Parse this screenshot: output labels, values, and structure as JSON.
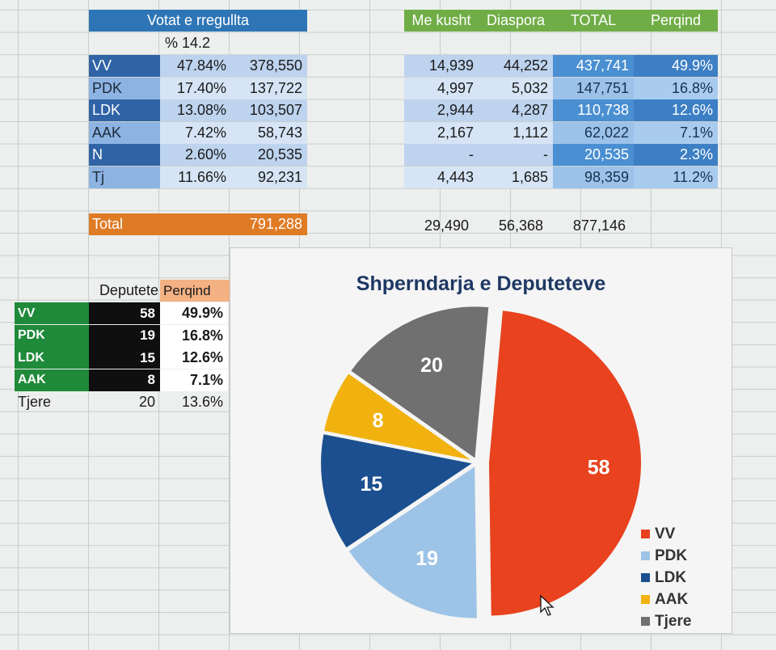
{
  "votes_table": {
    "header": "Votat e rregullta",
    "turnout": "% 14.2",
    "rows": [
      {
        "party": "VV",
        "pct": "47.84%",
        "votes": "378,550"
      },
      {
        "party": "PDK",
        "pct": "17.40%",
        "votes": "137,722"
      },
      {
        "party": "LDK",
        "pct": "13.08%",
        "votes": "103,507"
      },
      {
        "party": "AAK",
        "pct": "7.42%",
        "votes": "58,743"
      },
      {
        "party": "N",
        "pct": "2.60%",
        "votes": "20,535"
      },
      {
        "party": "Tj",
        "pct": "11.66%",
        "votes": "92,231"
      }
    ],
    "total_label": "Total",
    "total_value": "791,288"
  },
  "extra_table": {
    "headers": [
      "Me kusht",
      "Diaspora",
      "TOTAL",
      "Perqind"
    ],
    "rows": [
      {
        "kusht": "14,939",
        "diaspora": "44,252",
        "total": "437,741",
        "pct": "49.9%"
      },
      {
        "kusht": "4,997",
        "diaspora": "5,032",
        "total": "147,751",
        "pct": "16.8%"
      },
      {
        "kusht": "2,944",
        "diaspora": "4,287",
        "total": "110,738",
        "pct": "12.6%"
      },
      {
        "kusht": "2,167",
        "diaspora": "1,112",
        "total": "62,022",
        "pct": "7.1%"
      },
      {
        "kusht": "-",
        "diaspora": "-",
        "total": "20,535",
        "pct": "2.3%"
      },
      {
        "kusht": "4,443",
        "diaspora": "1,685",
        "total": "98,359",
        "pct": "11.2%"
      }
    ],
    "totals": {
      "kusht": "29,490",
      "diaspora": "56,368",
      "total": "877,146"
    }
  },
  "deputies_table": {
    "headers": [
      "Deputete",
      "Perqind"
    ],
    "rows": [
      {
        "party": "VV",
        "seats": "58",
        "pct": "49.9%"
      },
      {
        "party": "PDK",
        "seats": "19",
        "pct": "16.8%"
      },
      {
        "party": "LDK",
        "seats": "15",
        "pct": "12.6%"
      },
      {
        "party": "AAK",
        "seats": "8",
        "pct": "7.1%"
      }
    ],
    "others": {
      "party": "Tjere",
      "seats": "20",
      "pct": "13.6%"
    }
  },
  "chart_data": {
    "type": "pie",
    "title": "Shperndarja e Deputeteve",
    "categories": [
      "VV",
      "PDK",
      "LDK",
      "AAK",
      "Tjere"
    ],
    "values": [
      58,
      19,
      15,
      8,
      20
    ],
    "colors": [
      "#e8421f",
      "#9dc3e6",
      "#1b4f8f",
      "#f1b20f",
      "#707070"
    ],
    "label_colors": [
      "#ffffff",
      "#ffffff",
      "#ffffff",
      "#ffffff",
      "#ffffff"
    ],
    "legend_position": "bottom-right",
    "exploded": true
  }
}
